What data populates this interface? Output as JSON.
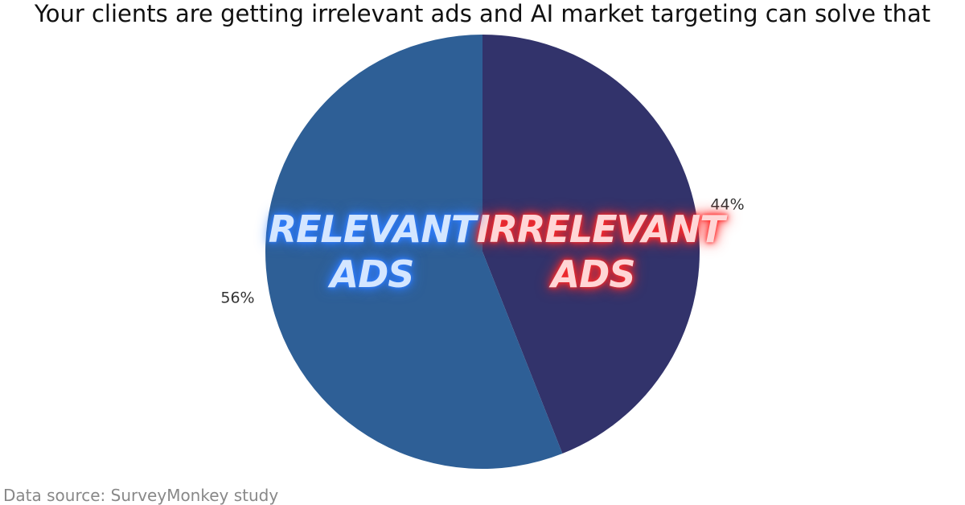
{
  "chart_data": {
    "type": "pie",
    "title": "Your clients are getting irrelevant ads and AI market targeting can solve that",
    "categories": [
      "IRRELEVANT ADS",
      "RELEVANT ADS"
    ],
    "values": [
      44,
      56
    ],
    "value_labels": [
      "44%",
      "56%"
    ],
    "colors": [
      "#32336b",
      "#2e5f96"
    ],
    "label_styles": [
      {
        "color": "#ffd6d6",
        "glow": "#ff2a2a"
      },
      {
        "color": "#d4e6ff",
        "glow": "#2f7dff"
      }
    ],
    "source": "Data source: SurveyMonkey study"
  }
}
